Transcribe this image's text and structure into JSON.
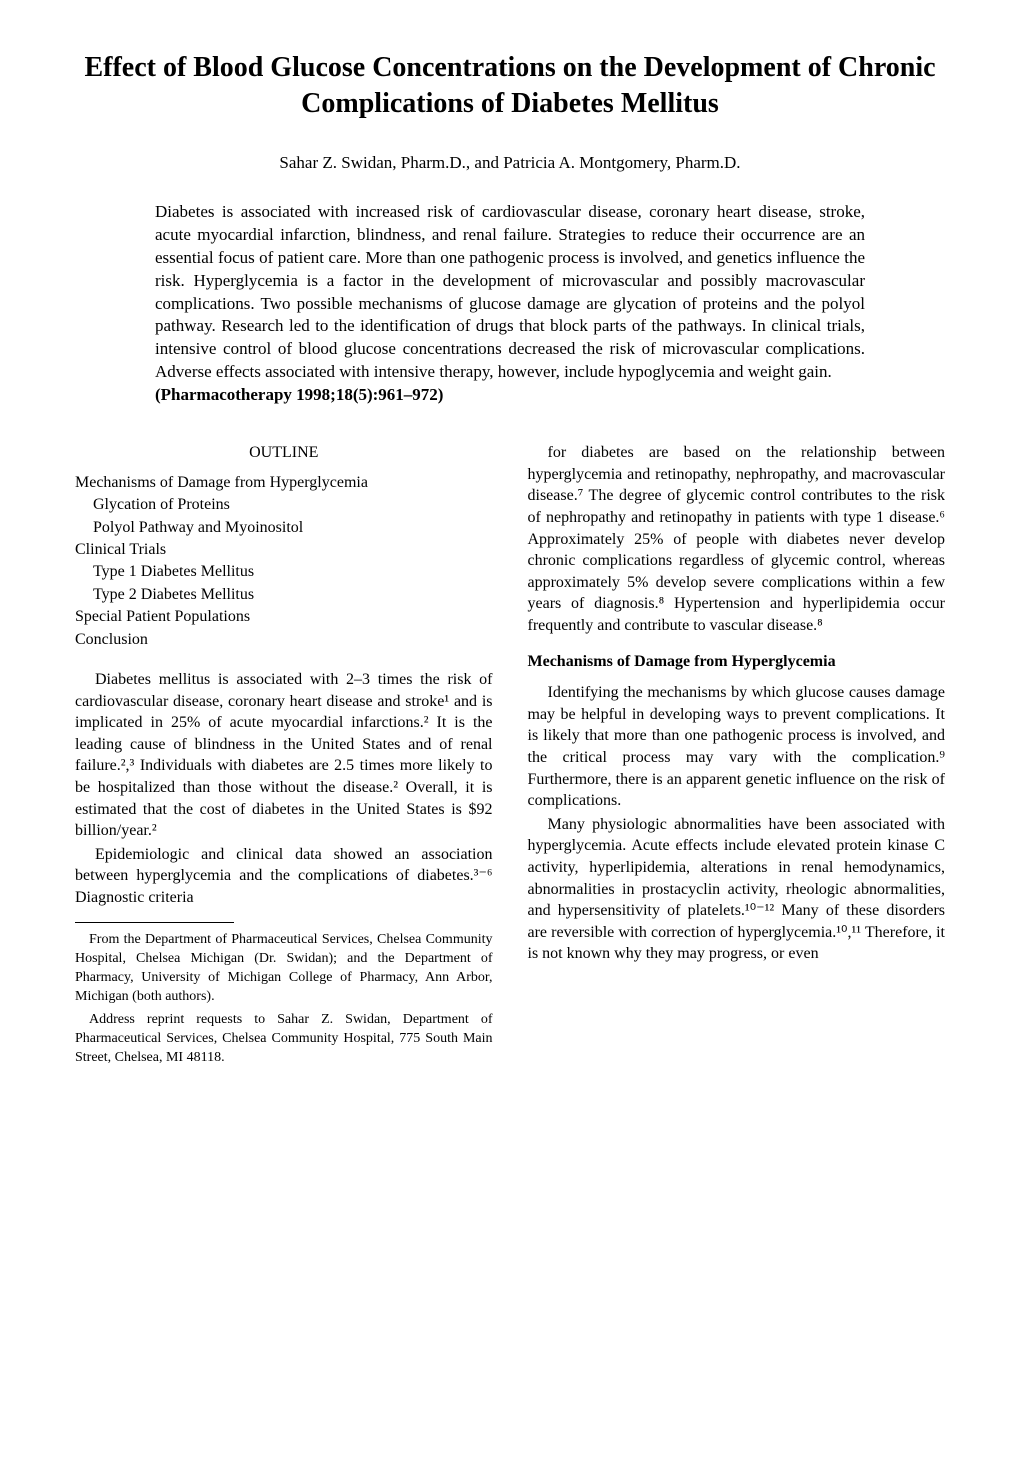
{
  "title": "Effect of Blood Glucose Concentrations on the Development of Chronic Complications of Diabetes Mellitus",
  "authors": "Sahar Z. Swidan, Pharm.D., and Patricia A. Montgomery, Pharm.D.",
  "abstract": "Diabetes is associated with increased risk of cardiovascular disease, coronary heart disease, stroke, acute myocardial infarction, blindness, and renal failure. Strategies to reduce their occurrence are an essential focus of patient care. More than one pathogenic process is involved, and genetics influence the risk. Hyperglycemia is a factor in the development of microvascular and possibly macrovascular complications. Two possible mechanisms of glucose damage are glycation of proteins and the polyol pathway. Research led to the identification of drugs that block parts of the pathways. In clinical trials, intensive control of blood glucose concentrations decreased the risk of microvascular complications. Adverse effects associated with intensive therapy, however, include hypoglycemia and weight gain.",
  "citation": "(Pharmacotherapy 1998;18(5):961–972)",
  "outline_heading": "OUTLINE",
  "outline": [
    {
      "text": "Mechanisms of Damage from Hyperglycemia",
      "indent": 0
    },
    {
      "text": "Glycation of Proteins",
      "indent": 1
    },
    {
      "text": "Polyol Pathway and Myoinositol",
      "indent": 1
    },
    {
      "text": "Clinical Trials",
      "indent": 0
    },
    {
      "text": "Type 1 Diabetes Mellitus",
      "indent": 1
    },
    {
      "text": "Type 2 Diabetes Mellitus",
      "indent": 1
    },
    {
      "text": "Special Patient Populations",
      "indent": 0
    },
    {
      "text": "Conclusion",
      "indent": 0
    }
  ],
  "left_paragraphs": [
    "Diabetes mellitus is associated with 2–3 times the risk of cardiovascular disease, coronary heart disease and stroke¹ and is implicated in 25% of acute myocardial infarctions.² It is the leading cause of blindness in the United States and of renal failure.²,³ Individuals with diabetes are 2.5 times more likely to be hospitalized than those without the disease.² Overall, it is estimated that the cost of diabetes in the United States is $92 billion/year.²",
    "Epidemiologic and clinical data showed an association between hyperglycemia and the complications of diabetes.³⁻⁶ Diagnostic criteria"
  ],
  "footnotes": [
    "From the Department of Pharmaceutical Services, Chelsea Community Hospital, Chelsea Michigan (Dr. Swidan); and the Department of Pharmacy, University of Michigan College of Pharmacy, Ann Arbor, Michigan (both authors).",
    "Address reprint requests to Sahar Z. Swidan, Department of Pharmaceutical Services, Chelsea Community Hospital, 775 South Main Street, Chelsea, MI 48118."
  ],
  "right_paragraphs_top": [
    "for diabetes are based on the relationship between hyperglycemia and retinopathy, nephropathy, and macrovascular disease.⁷ The degree of glycemic control contributes to the risk of nephropathy and retinopathy in patients with type 1 disease.⁶ Approximately 25% of people with diabetes never develop chronic complications regardless of glycemic control, whereas approximately 5% develop severe complications within a few years of diagnosis.⁸ Hypertension and hyperlipidemia occur frequently and contribute to vascular disease.⁸"
  ],
  "section_heading": "Mechanisms of Damage from Hyperglycemia",
  "right_paragraphs_bottom": [
    "Identifying the mechanisms by which glucose causes damage may be helpful in developing ways to prevent complications. It is likely that more than one pathogenic process is involved, and the critical process may vary with the complication.⁹ Furthermore, there is an apparent genetic influence on the risk of complications.",
    "Many physiologic abnormalities have been associated with hyperglycemia. Acute effects include elevated protein kinase C activity, hyperlipidemia, alterations in renal hemodynamics, abnormalities in prostacyclin activity, rheologic abnormalities, and hypersensitivity of platelets.¹⁰⁻¹² Many of these disorders are reversible with correction of hyperglycemia.¹⁰,¹¹ Therefore, it is not known why they may progress, or even"
  ]
}
